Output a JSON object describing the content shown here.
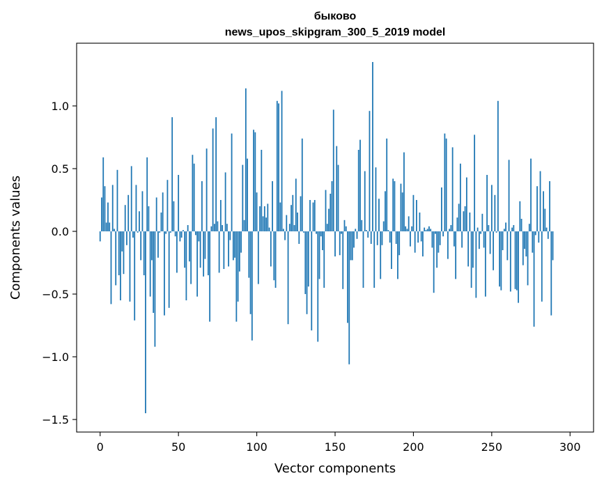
{
  "chart_data": {
    "type": "bar",
    "title": "быково",
    "subtitle": "news_upos_skipgram_300_5_2019 model",
    "xlabel": "Vector components",
    "ylabel": "Components values",
    "xlim": [
      -15,
      315
    ],
    "ylim": [
      -1.6,
      1.5
    ],
    "xticks": [
      0,
      50,
      100,
      150,
      200,
      250,
      300
    ],
    "yticks": [
      -1.5,
      -1.0,
      -0.5,
      0.0,
      0.5,
      1.0
    ],
    "ytick_labels": [
      "−1.5",
      "−1.0",
      "−0.5",
      "0.0",
      "0.5",
      "1.0"
    ],
    "grid": false,
    "bar_color": "#1f77b4",
    "values": [
      -0.08,
      0.27,
      0.59,
      0.36,
      0.07,
      0.23,
      0.07,
      -0.58,
      0.37,
      0.02,
      -0.43,
      0.49,
      -0.35,
      -0.55,
      -0.16,
      -0.34,
      0.21,
      -0.11,
      0.29,
      -0.56,
      0.52,
      -0.05,
      -0.71,
      0.37,
      -0.01,
      0.16,
      -0.23,
      0.32,
      -0.35,
      -1.45,
      0.59,
      0.2,
      -0.52,
      -0.23,
      -0.65,
      -0.92,
      0.27,
      -0.21,
      -0.01,
      0.15,
      0.31,
      -0.67,
      -0.02,
      0.41,
      -0.61,
      -0.01,
      0.91,
      0.24,
      -0.04,
      -0.33,
      0.45,
      -0.08,
      -0.05,
      0.01,
      -0.29,
      -0.55,
      0.05,
      -0.24,
      -0.42,
      0.61,
      0.54,
      -0.03,
      -0.52,
      -0.08,
      -0.29,
      0.4,
      -0.36,
      -0.22,
      0.66,
      -0.35,
      -0.72,
      0.04,
      0.82,
      0.06,
      0.91,
      0.08,
      -0.33,
      0.25,
      0.05,
      -0.3,
      0.47,
      0.06,
      -0.28,
      -0.07,
      0.78,
      -0.23,
      -0.21,
      -0.72,
      -0.56,
      -0.32,
      -0.17,
      0.53,
      0.09,
      1.14,
      0.58,
      -0.37,
      -0.66,
      -0.87,
      0.81,
      0.79,
      0.31,
      -0.42,
      0.2,
      0.65,
      0.12,
      0.2,
      0.11,
      0.22,
      0.03,
      -0.28,
      0.4,
      -0.39,
      -0.45,
      1.04,
      1.02,
      0.23,
      1.12,
      0.02,
      -0.07,
      0.13,
      -0.74,
      0.06,
      0.21,
      0.29,
      0.05,
      0.42,
      0.15,
      -0.1,
      0.28,
      0.74,
      -0.01,
      -0.5,
      -0.66,
      -0.44,
      0.25,
      -0.79,
      0.23,
      0.25,
      -0.02,
      -0.88,
      -0.38,
      -0.04,
      -0.15,
      -0.45,
      0.33,
      0.06,
      0.18,
      0.3,
      0.4,
      0.97,
      -0.2,
      0.68,
      0.53,
      -0.19,
      -0.02,
      -0.46,
      0.09,
      0.04,
      -0.73,
      -1.06,
      -0.23,
      -0.23,
      -0.13,
      0.02,
      -0.06,
      0.65,
      0.73,
      0.09,
      -0.45,
      0.48,
      0.01,
      -0.05,
      0.96,
      -0.1,
      1.35,
      -0.45,
      0.51,
      -0.11,
      0.26,
      -0.38,
      -0.11,
      0.08,
      0.32,
      0.74,
      0.01,
      -0.09,
      -0.3,
      0.42,
      0.4,
      -0.1,
      -0.38,
      -0.19,
      0.38,
      0.31,
      0.63,
      0.04,
      0.02,
      0.12,
      -0.12,
      0.04,
      0.29,
      -0.17,
      0.25,
      -0.09,
      0.15,
      -0.08,
      -0.2,
      0.03,
      0.01,
      0.02,
      0.04,
      0.02,
      -0.13,
      -0.49,
      -0.02,
      -0.29,
      -0.17,
      -0.11,
      0.35,
      -0.04,
      0.78,
      0.74,
      -0.22,
      0.02,
      0.05,
      0.67,
      -0.12,
      -0.38,
      0.11,
      0.22,
      0.54,
      -0.13,
      0.16,
      0.2,
      0.43,
      -0.28,
      0.15,
      -0.45,
      -0.29,
      0.77,
      -0.53,
      0.03,
      -0.14,
      -0.02,
      0.14,
      -0.13,
      -0.52,
      0.45,
      0.05,
      -0.18,
      0.37,
      -0.31,
      0.29,
      -0.01,
      1.04,
      -0.44,
      -0.47,
      -0.15,
      0.02,
      0.07,
      -0.23,
      0.57,
      -0.48,
      0.03,
      0.05,
      -0.46,
      -0.47,
      -0.57,
      0.24,
      0.1,
      -0.27,
      -0.14,
      -0.2,
      -0.43,
      0.06,
      0.58,
      -0.17,
      -0.76,
      -0.03,
      0.36,
      -0.09,
      0.48,
      -0.56,
      0.32,
      0.18,
      0.03,
      -0.06,
      0.4,
      -0.67,
      -0.23
    ]
  }
}
